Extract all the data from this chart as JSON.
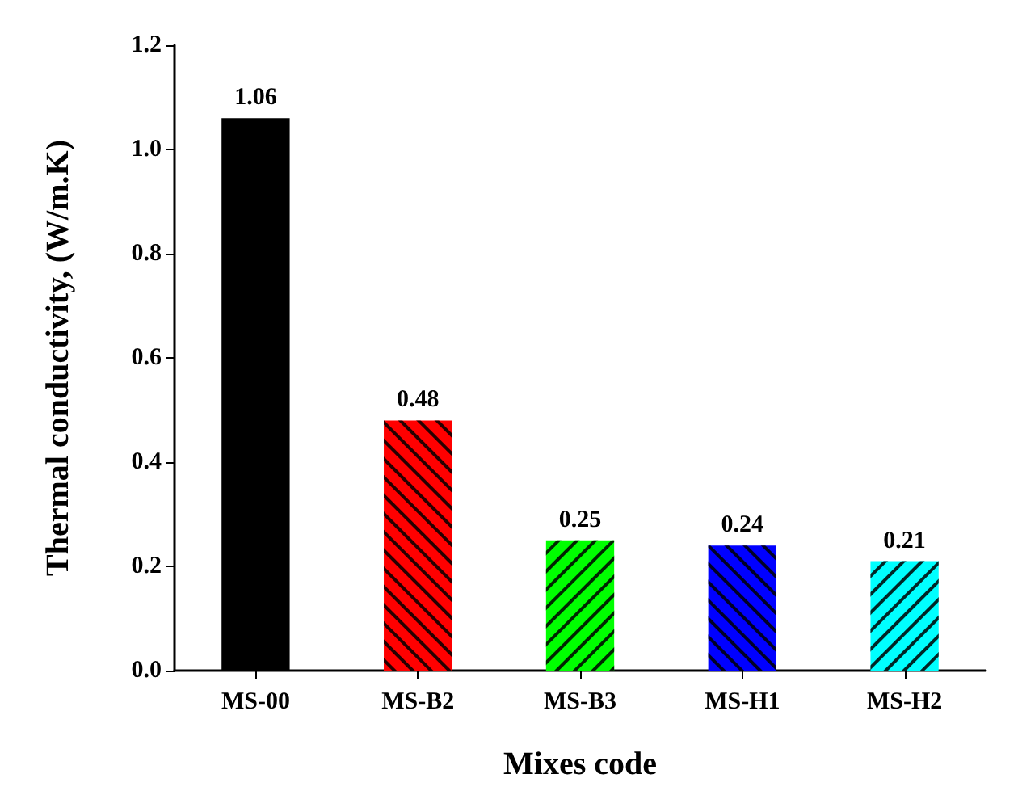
{
  "chart_data": {
    "type": "bar",
    "xlabel": "Mixes code",
    "ylabel": "Thermal conductivity, (W/m.K)",
    "categories": [
      "MS-00",
      "MS-B2",
      "MS-B3",
      "MS-H1",
      "MS-H2"
    ],
    "values": [
      1.06,
      0.48,
      0.25,
      0.24,
      0.21
    ],
    "colors": [
      "#000000",
      "#ff0000",
      "#00ff00",
      "#0000ff",
      "#00ffff"
    ],
    "ylim": [
      0,
      1.2
    ],
    "yticks": [
      {
        "value": 0,
        "label": "0.0"
      },
      {
        "value": 0.2,
        "label": "0.2"
      },
      {
        "value": 0.4,
        "label": "0.4"
      },
      {
        "value": 0.6,
        "label": "0.6"
      },
      {
        "value": 0.8,
        "label": "0.8"
      },
      {
        "value": 1,
        "label": "1.0"
      },
      {
        "value": 1.2,
        "label": "1.2"
      }
    ],
    "data_labels": true
  }
}
